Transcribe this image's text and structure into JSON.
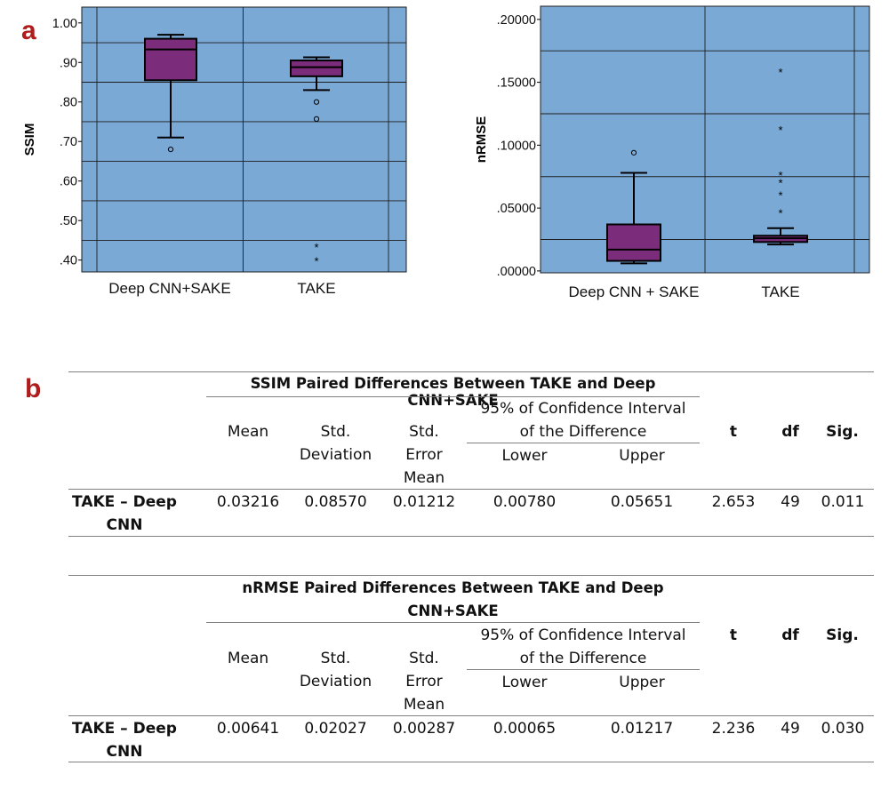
{
  "panels": {
    "a": "a",
    "b": "b"
  },
  "chart_data": [
    {
      "type": "box",
      "ylabel": "SSIM",
      "ylim": [
        0.37,
        1.04
      ],
      "yticks": [
        1.0,
        0.9,
        0.8,
        0.7,
        0.6,
        0.5,
        0.4
      ],
      "ytick_labels": [
        "1.00",
        ".90",
        ".80",
        ".70",
        ".60",
        ".50",
        ".40"
      ],
      "gridlines": [
        0.95,
        0.85,
        0.75,
        0.65,
        0.55,
        0.45
      ],
      "categories": [
        "Deep CNN+SAKE",
        "TAKE"
      ],
      "boxes": [
        {
          "name": "Deep CNN+SAKE",
          "whisker_low": 0.71,
          "q1": 0.855,
          "median": 0.933,
          "q3": 0.96,
          "whisker_high": 0.97,
          "outliers": [
            0.68
          ],
          "extremes": []
        },
        {
          "name": "TAKE",
          "whisker_low": 0.83,
          "q1": 0.865,
          "median": 0.888,
          "q3": 0.905,
          "whisker_high": 0.913,
          "outliers": [
            0.8,
            0.757
          ],
          "extremes": [
            0.435,
            0.4
          ]
        }
      ],
      "colors": {
        "plot_bg": "#7aa9d6",
        "box_fill": "#7b2d7b",
        "grid": "#1d1d1d"
      }
    },
    {
      "type": "box",
      "ylabel": "nRMSE",
      "ylim": [
        -0.0015,
        0.2105
      ],
      "yticks": [
        0.2,
        0.15,
        0.1,
        0.05,
        0.0
      ],
      "ytick_labels": [
        ".20000",
        ".15000",
        ".10000",
        ".05000",
        ".00000"
      ],
      "gridlines": [
        0.175,
        0.125,
        0.075,
        0.025
      ],
      "categories": [
        "Deep CNN + SAKE",
        "TAKE"
      ],
      "boxes": [
        {
          "name": "Deep CNN + SAKE",
          "whisker_low": 0.006,
          "q1": 0.008,
          "median": 0.017,
          "q3": 0.037,
          "whisker_high": 0.078,
          "outliers": [
            0.094
          ],
          "extremes": []
        },
        {
          "name": "TAKE",
          "whisker_low": 0.021,
          "q1": 0.023,
          "median": 0.026,
          "q3": 0.028,
          "whisker_high": 0.034,
          "outliers": [],
          "extremes": [
            0.159,
            0.113,
            0.077,
            0.071,
            0.061,
            0.047
          ]
        }
      ],
      "colors": {
        "plot_bg": "#7aa9d6",
        "box_fill": "#7b2d7b",
        "grid": "#1d1d1d"
      }
    }
  ],
  "tables": [
    {
      "title_line1": "SSIM Paired Differences Between TAKE and Deep CNN+SAKE",
      "title_line2": "",
      "headers": {
        "mean": "Mean",
        "std_dev_1": "Std.",
        "std_dev_2": "Deviation",
        "std_err_1": "Std.",
        "std_err_2": "Error",
        "std_err_3": "Mean",
        "ci_1": "95% of Confidence Interval",
        "ci_2": "of the Difference",
        "lower": "Lower",
        "upper": "Upper",
        "t": "t",
        "df": "df",
        "sig": "Sig."
      },
      "row": {
        "label_1": "TAKE – Deep",
        "label_2": "CNN",
        "mean": "0.03216",
        "std_dev": "0.08570",
        "std_err": "0.01212",
        "lower": "0.00780",
        "upper": "0.05651",
        "t": "2.653",
        "df": "49",
        "sig": "0.011"
      }
    },
    {
      "title_line1": "nRMSE Paired Differences Between TAKE and Deep",
      "title_line2": "CNN+SAKE",
      "headers": {
        "mean": "Mean",
        "std_dev_1": "Std.",
        "std_dev_2": "Deviation",
        "std_err_1": "Std.",
        "std_err_2": "Error",
        "std_err_3": "Mean",
        "ci_1": "95% of Confidence Interval",
        "ci_2": "of the Difference",
        "lower": "Lower",
        "upper": "Upper",
        "t": "t",
        "df": "df",
        "sig": "Sig."
      },
      "row": {
        "label_1": "TAKE – Deep",
        "label_2": "CNN",
        "mean": "0.00641",
        "std_dev": "0.02027",
        "std_err": "0.00287",
        "lower": "0.00065",
        "upper": "0.01217",
        "t": "2.236",
        "df": "49",
        "sig": "0.030"
      }
    }
  ]
}
